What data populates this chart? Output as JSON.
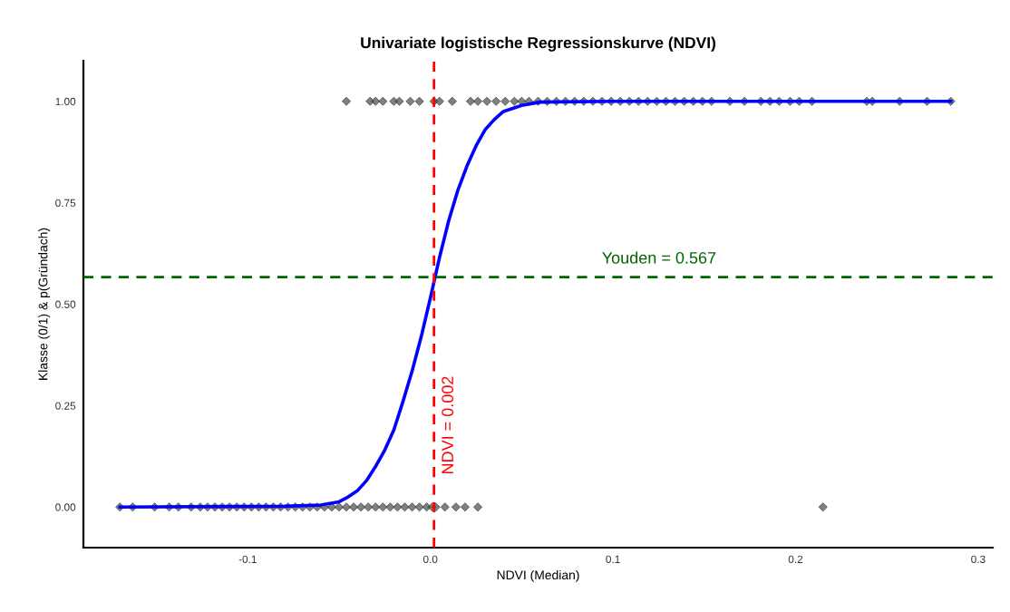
{
  "chart_data": {
    "type": "scatter",
    "title": "Univariate logistische Regressionskurve (NDVI)",
    "xlabel": "NDVI (Median)",
    "ylabel": "Klasse (0/1) & p(Gründach)",
    "xlim": [
      -0.19,
      0.308
    ],
    "ylim": [
      -0.1,
      1.1
    ],
    "xticks": [
      -0.1,
      {
        "value": 0,
        "label": "0.0"
      },
      0.1,
      0.2,
      0.3
    ],
    "yticks": [
      {
        "value": 0,
        "label": "0.00"
      },
      0.25,
      {
        "value": 0.5,
        "label": "0.50"
      },
      0.75,
      {
        "value": 1,
        "label": "1.00"
      }
    ],
    "grid": false,
    "legend": false,
    "series": [
      {
        "marker": "diamond",
        "color": "#555555",
        "x": [
          -0.17,
          -0.163,
          -0.151,
          -0.143,
          -0.138,
          -0.131,
          -0.126,
          -0.122,
          -0.118,
          -0.114,
          -0.11,
          -0.106,
          -0.102,
          -0.098,
          -0.094,
          -0.09,
          -0.086,
          -0.082,
          -0.078,
          -0.074,
          -0.07,
          -0.066,
          -0.062,
          -0.058,
          -0.054,
          -0.05,
          -0.046,
          -0.042,
          -0.038,
          -0.034,
          -0.03,
          -0.026,
          -0.022,
          -0.018,
          -0.014,
          -0.01,
          -0.006,
          -0.002,
          0.001,
          0.003,
          0.008,
          0.014,
          0.019,
          0.026,
          0.215,
          -0.046,
          -0.033,
          -0.03,
          -0.026,
          -0.02,
          -0.017,
          -0.011,
          -0.006,
          0.002,
          0.005,
          0.012,
          0.022,
          0.026,
          0.031,
          0.036,
          0.041,
          0.046,
          0.05,
          0.054,
          0.059,
          0.064,
          0.069,
          0.074,
          0.079,
          0.084,
          0.089,
          0.094,
          0.099,
          0.104,
          0.109,
          0.114,
          0.119,
          0.124,
          0.129,
          0.134,
          0.139,
          0.144,
          0.149,
          0.154,
          0.164,
          0.172,
          0.181,
          0.186,
          0.191,
          0.197,
          0.202,
          0.209,
          0.239,
          0.242,
          0.257,
          0.272,
          0.285
        ],
        "values": [
          0,
          0,
          0,
          0,
          0,
          0,
          0,
          0,
          0,
          0,
          0,
          0,
          0,
          0,
          0,
          0,
          0,
          0,
          0,
          0,
          0,
          0,
          0,
          0,
          0,
          0,
          0,
          0,
          0,
          0,
          0,
          0,
          0,
          0,
          0,
          0,
          0,
          0,
          0,
          0,
          0,
          0,
          0,
          0,
          0,
          1,
          1,
          1,
          1,
          1,
          1,
          1,
          1,
          1,
          1,
          1,
          1,
          1,
          1,
          1,
          1,
          1,
          1,
          1,
          1,
          1,
          1,
          1,
          1,
          1,
          1,
          1,
          1,
          1,
          1,
          1,
          1,
          1,
          1,
          1,
          1,
          1,
          1,
          1,
          1,
          1,
          1,
          1,
          1,
          1,
          1,
          1,
          1,
          1,
          1,
          1,
          1
        ]
      },
      {
        "type": "line",
        "marker": "none",
        "line_style": "solid",
        "color": "#0000ff",
        "x": [
          -0.17,
          -0.08,
          -0.06,
          -0.05,
          -0.045,
          -0.04,
          -0.035,
          -0.03,
          -0.025,
          -0.02,
          -0.015,
          -0.01,
          -0.005,
          0,
          0.005,
          0.01,
          0.015,
          0.02,
          0.025,
          0.03,
          0.035,
          0.04,
          0.05,
          0.06,
          0.1,
          0.285
        ],
        "values": [
          0,
          0.002,
          0.005,
          0.013,
          0.025,
          0.04,
          0.065,
          0.1,
          0.14,
          0.19,
          0.26,
          0.335,
          0.42,
          0.515,
          0.615,
          0.705,
          0.78,
          0.84,
          0.89,
          0.93,
          0.955,
          0.975,
          0.99,
          0.998,
          1,
          1
        ]
      }
    ],
    "ref_lines": [
      {
        "axis": "x",
        "value": 0.002,
        "label": "NDVI = 0.002",
        "color": "#ff0000",
        "line_style": "dashed"
      },
      {
        "axis": "y",
        "value": 0.567,
        "label": "Youden = 0.567",
        "color": "#006400",
        "line_style": "dashed"
      }
    ]
  }
}
